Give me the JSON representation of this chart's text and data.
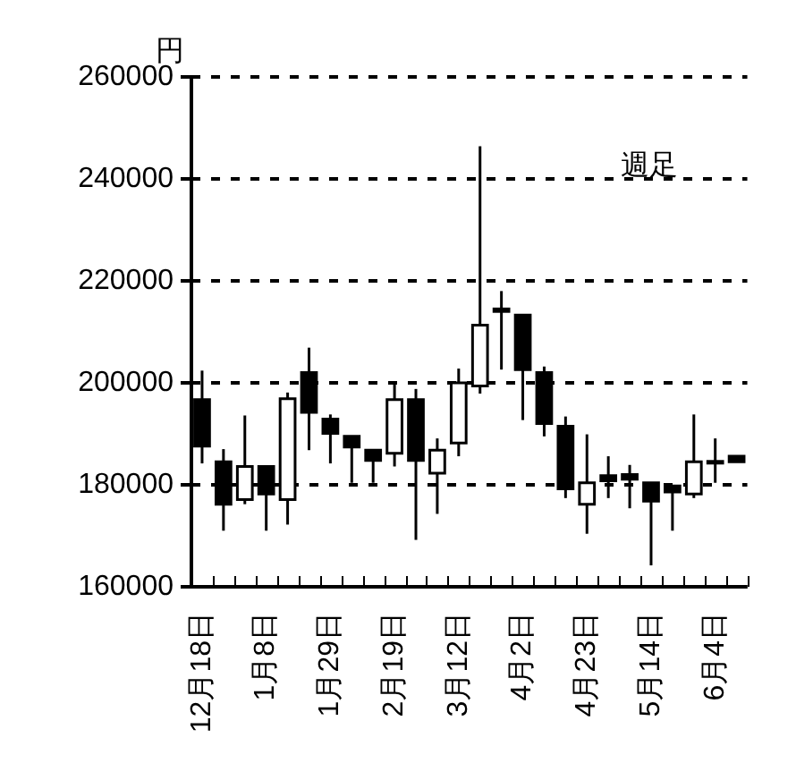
{
  "chart_data": {
    "type": "candlestick",
    "ylabel": "円",
    "annotations": [
      "週足"
    ],
    "categories": [
      "12月18日",
      null,
      null,
      "1月8日",
      null,
      null,
      "1月29日",
      null,
      null,
      "2月19日",
      null,
      null,
      "3月12日",
      null,
      null,
      "4月2日",
      null,
      null,
      "4月23日",
      null,
      null,
      "5月14日",
      null,
      null,
      "6月4日",
      null
    ],
    "ohlc": [
      [
        196700,
        202400,
        184200,
        187600
      ],
      [
        184500,
        187000,
        171000,
        176200
      ],
      [
        177100,
        193600,
        176200,
        183600
      ],
      [
        183600,
        183600,
        171000,
        178200
      ],
      [
        177100,
        198100,
        172200,
        196900
      ],
      [
        202000,
        206900,
        186800,
        194200
      ],
      [
        192900,
        193800,
        184200,
        190100
      ],
      [
        189500,
        189500,
        180400,
        187400
      ],
      [
        186800,
        186800,
        180400,
        184800
      ],
      [
        186200,
        200000,
        183600,
        196700
      ],
      [
        196700,
        198800,
        169200,
        184800
      ],
      [
        182300,
        189100,
        174300,
        186800
      ],
      [
        188200,
        202800,
        185600,
        200000
      ],
      [
        199400,
        246400,
        197900,
        211300
      ],
      [
        214000,
        218000,
        202600,
        214500
      ],
      [
        213300,
        213300,
        192700,
        202600
      ],
      [
        202000,
        203200,
        189500,
        192000
      ],
      [
        191500,
        193400,
        177400,
        179200
      ],
      [
        176200,
        189900,
        170400,
        180400
      ],
      [
        181800,
        185600,
        177400,
        180800
      ],
      [
        182000,
        183900,
        175400,
        181100
      ],
      [
        180400,
        180400,
        164200,
        176800
      ],
      [
        179800,
        179800,
        171000,
        178600
      ],
      [
        178200,
        193800,
        177400,
        184500
      ],
      [
        184400,
        189100,
        180400,
        184600
      ],
      [
        185600,
        185600,
        184500,
        184500
      ]
    ],
    "ylim": [
      160000,
      260000
    ],
    "yticks": [
      160000,
      180000,
      200000,
      220000,
      240000,
      260000
    ],
    "grid": "y",
    "legend": false
  }
}
